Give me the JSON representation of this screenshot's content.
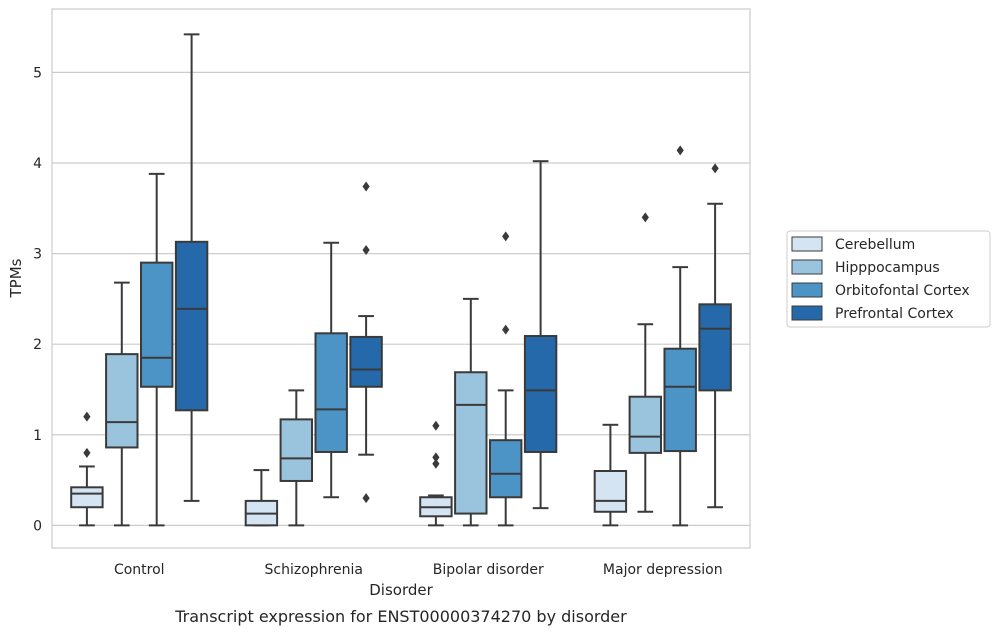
{
  "caption": "Transcript expression for ENST00000374270 by disorder",
  "chart_data": {
    "type": "box",
    "title": "",
    "xlabel": "Disorder",
    "ylabel": "TPMs",
    "ylim": [
      -0.25,
      5.7
    ],
    "yticks": [
      0,
      1,
      2,
      3,
      4,
      5
    ],
    "grid": "horizontal",
    "legend_position": "right",
    "categories": [
      "Control",
      "Schizophrenia",
      "Bipolar disorder",
      "Major depression"
    ],
    "series": [
      {
        "name": "Cerebellum",
        "color": "#d4e4f3",
        "boxes": [
          {
            "whislo": 0.0,
            "q1": 0.2,
            "med": 0.35,
            "q3": 0.42,
            "whishi": 0.65,
            "fliers": [
              0.8,
              1.2
            ]
          },
          {
            "whislo": 0.0,
            "q1": 0.0,
            "med": 0.13,
            "q3": 0.27,
            "whishi": 0.61,
            "fliers": []
          },
          {
            "whislo": 0.0,
            "q1": 0.1,
            "med": 0.2,
            "q3": 0.31,
            "whishi": 0.33,
            "fliers": [
              0.68,
              0.75,
              1.1
            ]
          },
          {
            "whislo": 0.0,
            "q1": 0.15,
            "med": 0.27,
            "q3": 0.6,
            "whishi": 1.11,
            "fliers": []
          }
        ]
      },
      {
        "name": "Hipppocampus",
        "color": "#9ac3de",
        "boxes": [
          {
            "whislo": 0.0,
            "q1": 0.86,
            "med": 1.14,
            "q3": 1.89,
            "whishi": 2.68,
            "fliers": []
          },
          {
            "whislo": 0.0,
            "q1": 0.49,
            "med": 0.74,
            "q3": 1.17,
            "whishi": 1.49,
            "fliers": []
          },
          {
            "whislo": 0.0,
            "q1": 0.13,
            "med": 1.33,
            "q3": 1.69,
            "whishi": 2.5,
            "fliers": []
          },
          {
            "whislo": 0.15,
            "q1": 0.8,
            "med": 0.98,
            "q3": 1.42,
            "whishi": 2.22,
            "fliers": [
              3.4
            ]
          }
        ]
      },
      {
        "name": "Orbitofontal Cortex",
        "color": "#4d94c6",
        "boxes": [
          {
            "whislo": 0.0,
            "q1": 1.53,
            "med": 1.85,
            "q3": 2.9,
            "whishi": 3.88,
            "fliers": []
          },
          {
            "whislo": 0.31,
            "q1": 0.81,
            "med": 1.28,
            "q3": 2.12,
            "whishi": 3.12,
            "fliers": []
          },
          {
            "whislo": 0.0,
            "q1": 0.31,
            "med": 0.57,
            "q3": 0.94,
            "whishi": 1.49,
            "fliers": [
              2.16,
              3.19
            ]
          },
          {
            "whislo": 0.0,
            "q1": 0.82,
            "med": 1.53,
            "q3": 1.95,
            "whishi": 2.85,
            "fliers": [
              4.14
            ]
          }
        ]
      },
      {
        "name": "Prefrontal Cortex",
        "color": "#2669ab",
        "boxes": [
          {
            "whislo": 0.27,
            "q1": 1.27,
            "med": 2.39,
            "q3": 3.13,
            "whishi": 5.42,
            "fliers": []
          },
          {
            "whislo": 0.78,
            "q1": 1.53,
            "med": 1.72,
            "q3": 2.08,
            "whishi": 2.31,
            "fliers": [
              0.3,
              3.04,
              3.74
            ]
          },
          {
            "whislo": 0.19,
            "q1": 0.81,
            "med": 1.49,
            "q3": 2.09,
            "whishi": 4.02,
            "fliers": []
          },
          {
            "whislo": 0.2,
            "q1": 1.49,
            "med": 2.17,
            "q3": 2.44,
            "whishi": 3.55,
            "fliers": [
              3.94
            ]
          }
        ]
      }
    ]
  }
}
